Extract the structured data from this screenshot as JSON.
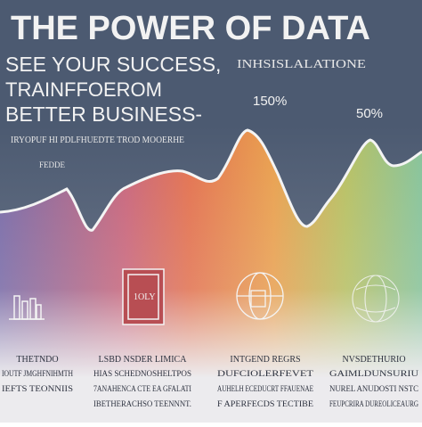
{
  "header": {
    "title": "THE POWER OF DATA",
    "line1": "SEE YOUR SUCCESS,",
    "line1_tag": "INHSISLALATIONE",
    "line2": "TRAINFFOEROM",
    "line3": "BETTER BUSINESS-",
    "caption": "IRYOPUF HI PDLFHUEDTE TROD MOOERHE",
    "caption_small": "FEDDE"
  },
  "callouts": [
    "150%",
    "50%"
  ],
  "icons": [
    "1OLY"
  ],
  "columns": [
    {
      "heading": "THETNDO",
      "lines": [
        "IOUTF JMGHFNIHMTH",
        "IEFTS TEONNIIS"
      ]
    },
    {
      "heading": "LSBD NSDER LIMICA",
      "lines": [
        "HIAS SCHEDNOSHELTPOS",
        "7ANAHENCA CTE EA GFALATI",
        "IBETHERACHSO TEENNNT."
      ]
    },
    {
      "heading": "INTGEND REGRS",
      "lines": [
        "DUFCIOLERFEVET",
        "AUHELH ECEDUCRT FFAUENAE",
        "F APERFECDS TECTIBE"
      ]
    },
    {
      "heading": "NVSDETHURIO",
      "lines": [
        "GAIMLDUNSURIU",
        "NUREL ANUDOSTI NSTC",
        "FEUPCRIRA DUREOLICEAURG"
      ]
    }
  ]
}
